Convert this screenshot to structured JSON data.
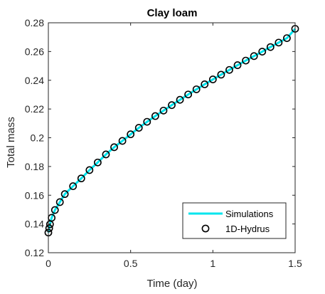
{
  "chart_data": {
    "type": "line",
    "title": "Clay loam",
    "xlabel": "Time (day)",
    "ylabel": "Total mass",
    "xlim": [
      0,
      1.5
    ],
    "ylim": [
      0.12,
      0.28
    ],
    "xticks": [
      0,
      0.5,
      1,
      1.5
    ],
    "xtick_labels": [
      "0",
      "0.5",
      "1",
      "1.5"
    ],
    "yticks": [
      0.12,
      0.14,
      0.16,
      0.18,
      0.2,
      0.22,
      0.24,
      0.26,
      0.28
    ],
    "ytick_labels": [
      "0.12",
      "0.14",
      "0.16",
      "0.18",
      "0.2",
      "0.22",
      "0.24",
      "0.26",
      "0.28"
    ],
    "grid": false,
    "legend_position": "bottom-right",
    "series": [
      {
        "name": "Simulations",
        "style": "line",
        "color": "#00e5ee",
        "x": [
          0,
          0.005,
          0.01,
          0.02,
          0.04,
          0.07,
          0.1,
          0.15,
          0.2,
          0.25,
          0.3,
          0.35,
          0.4,
          0.45,
          0.5,
          0.55,
          0.6,
          0.65,
          0.7,
          0.75,
          0.8,
          0.85,
          0.9,
          0.95,
          1.0,
          1.05,
          1.1,
          1.15,
          1.2,
          1.25,
          1.3,
          1.35,
          1.4,
          1.45,
          1.5
        ],
        "y": [
          0.134,
          0.137,
          0.1398,
          0.1443,
          0.1497,
          0.1552,
          0.1608,
          0.1663,
          0.1717,
          0.1775,
          0.1828,
          0.1884,
          0.1934,
          0.1978,
          0.2024,
          0.2069,
          0.2111,
          0.2151,
          0.2189,
          0.2227,
          0.2264,
          0.2301,
          0.2337,
          0.2372,
          0.2406,
          0.2439,
          0.2472,
          0.2505,
          0.2537,
          0.2568,
          0.2599,
          0.2631,
          0.2662,
          0.2693,
          0.2758
        ]
      },
      {
        "name": "1D-Hydrus",
        "style": "markers",
        "marker": "circle",
        "color": "#000000",
        "x": [
          0,
          0.005,
          0.01,
          0.02,
          0.04,
          0.07,
          0.1,
          0.15,
          0.2,
          0.25,
          0.3,
          0.35,
          0.4,
          0.45,
          0.5,
          0.55,
          0.6,
          0.65,
          0.7,
          0.75,
          0.8,
          0.85,
          0.9,
          0.95,
          1.0,
          1.05,
          1.1,
          1.15,
          1.2,
          1.25,
          1.3,
          1.35,
          1.4,
          1.45,
          1.5
        ],
        "y": [
          0.134,
          0.137,
          0.1398,
          0.1443,
          0.1497,
          0.1552,
          0.1608,
          0.1663,
          0.1717,
          0.1775,
          0.1828,
          0.1884,
          0.1934,
          0.1978,
          0.2024,
          0.2069,
          0.2111,
          0.2151,
          0.2189,
          0.2227,
          0.2264,
          0.2301,
          0.2337,
          0.2372,
          0.2406,
          0.2439,
          0.2472,
          0.2505,
          0.2537,
          0.2568,
          0.2599,
          0.2631,
          0.2662,
          0.2693,
          0.2758
        ]
      }
    ]
  }
}
